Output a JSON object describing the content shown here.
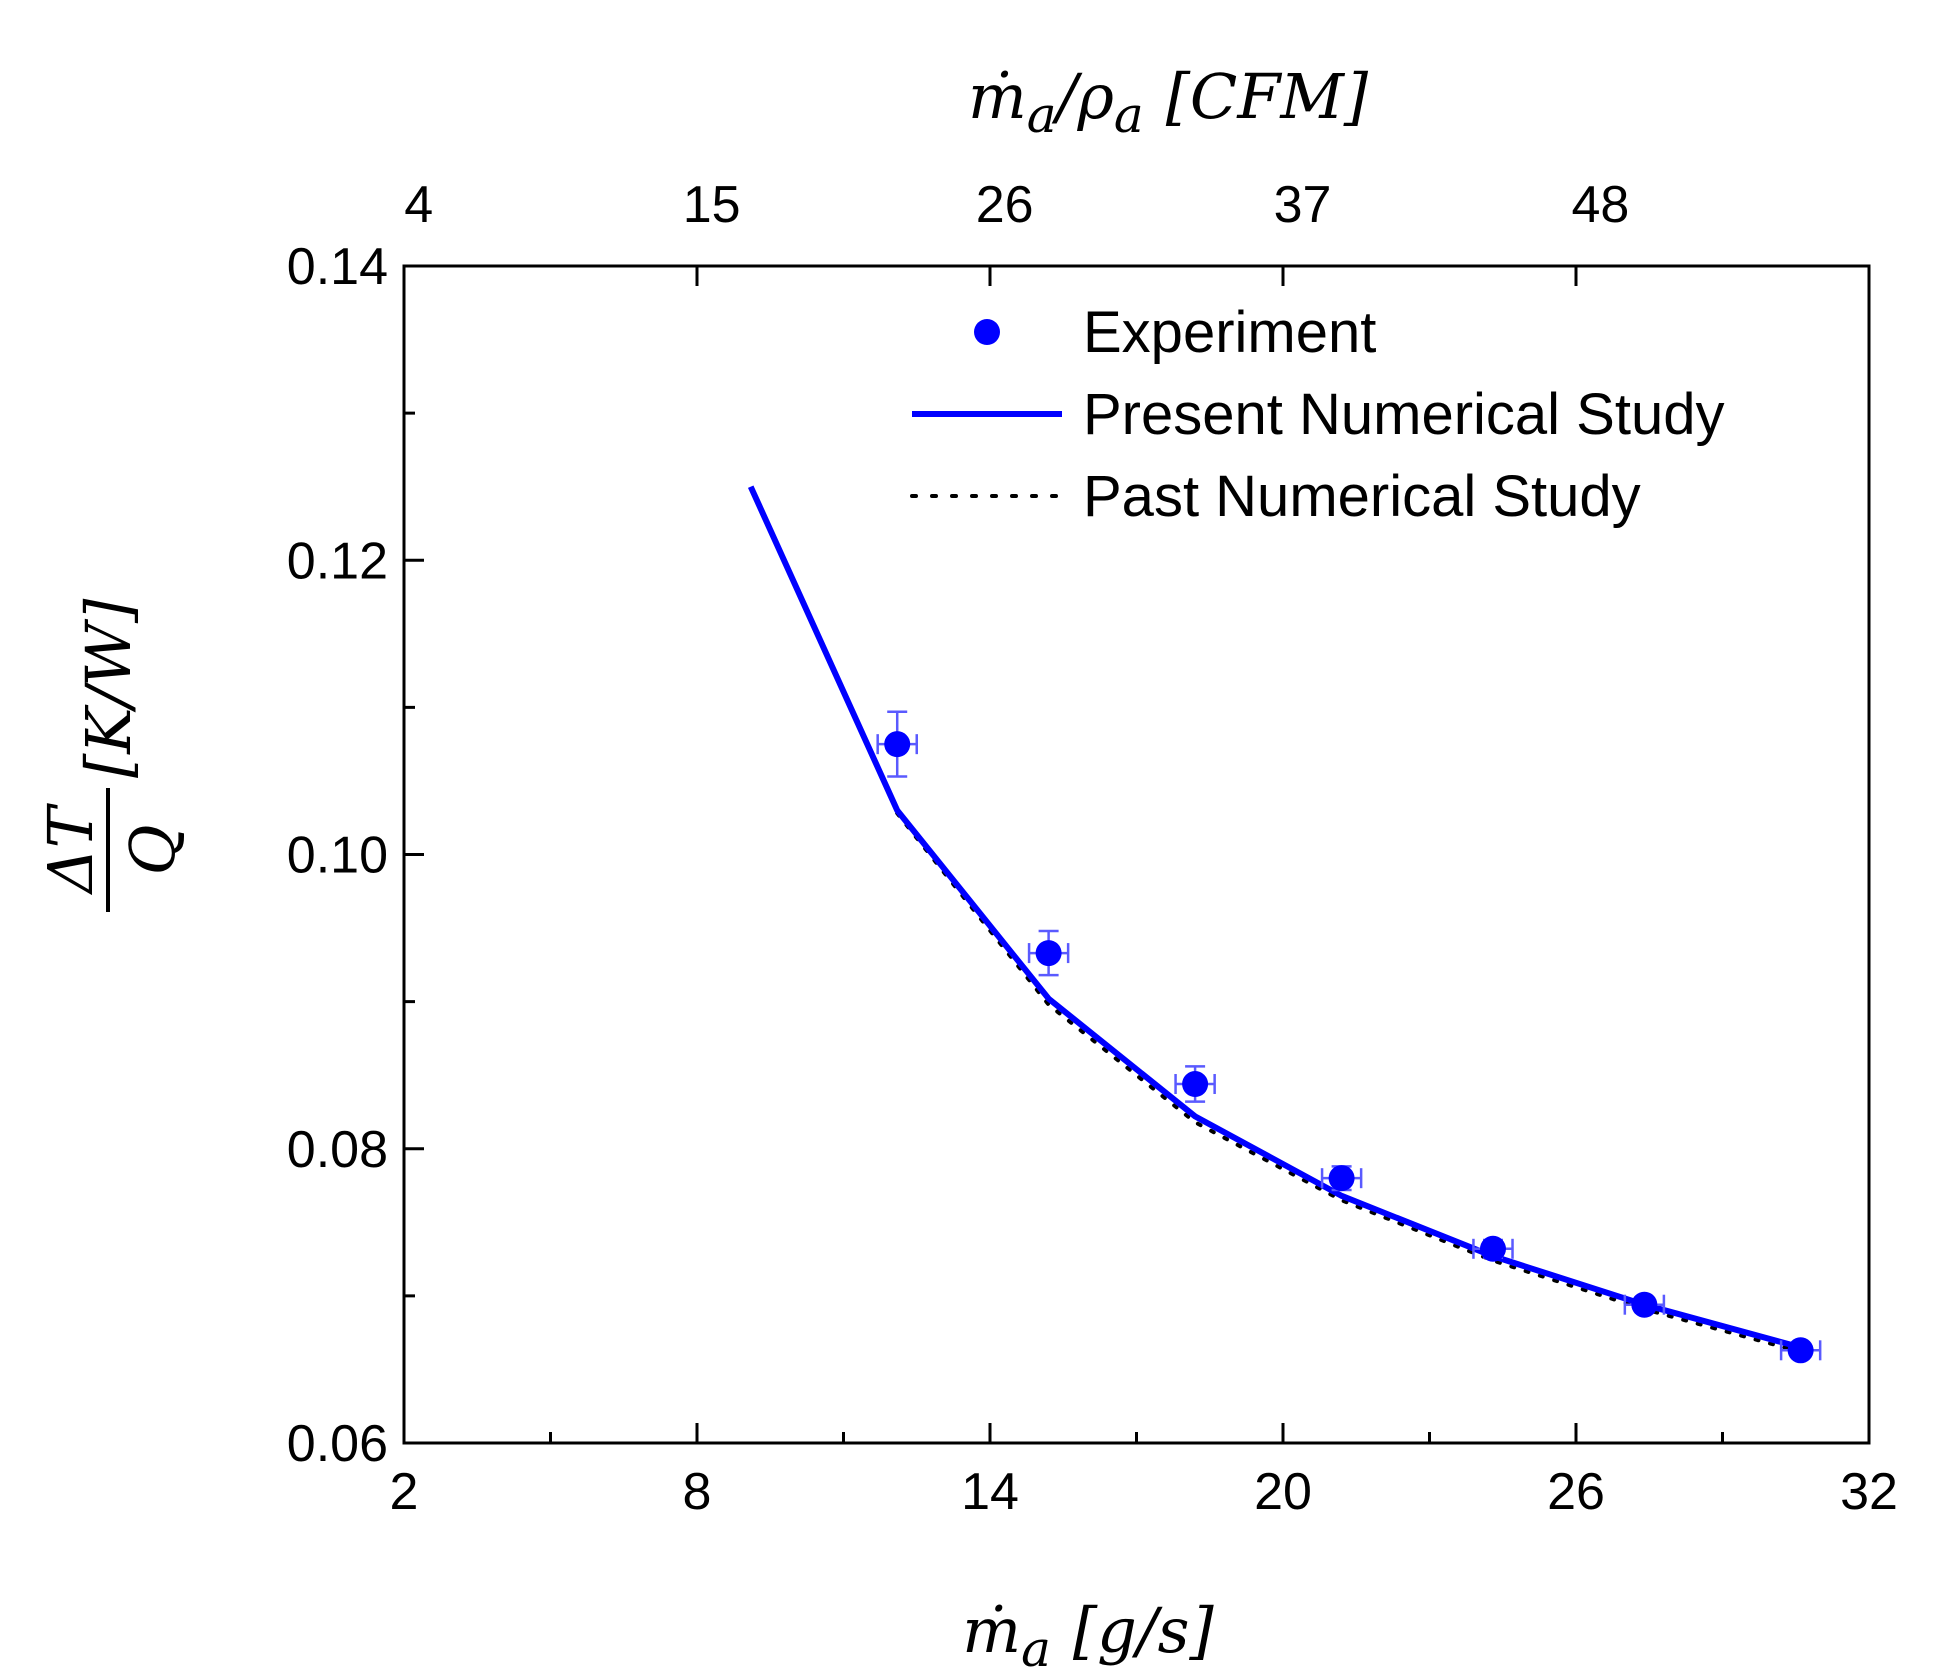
{
  "chart_data": {
    "type": "line",
    "title": "",
    "xlabel": {
      "sym": "ṁ",
      "sub": "a",
      "unit": "[g/s]"
    },
    "x2label": {
      "sym": "ṁ",
      "sub": "a",
      "slash": "/",
      "sym2": "ρ",
      "sub2": "a",
      "unit": "[CFM]"
    },
    "ylabel": {
      "num": "ΔT",
      "den": "Q",
      "unit": "[K/W]"
    },
    "xlim": [
      2,
      32
    ],
    "ylim": [
      0.06,
      0.14
    ],
    "x_ticks": [
      "2",
      "8",
      "14",
      "20",
      "26",
      "32"
    ],
    "x_tick_values": [
      2,
      8,
      14,
      20,
      26,
      32
    ],
    "y_ticks": [
      "0.06",
      "0.08",
      "0.10",
      "0.12",
      "0.14"
    ],
    "y_tick_values": [
      0.06,
      0.08,
      0.1,
      0.12,
      0.14
    ],
    "x2_ticks": [
      "4",
      "15",
      "26",
      "37",
      "48"
    ],
    "x2_tick_values_in_x_units": [
      2.3,
      8.3,
      14.3,
      20.4,
      26.5
    ],
    "grid": false,
    "legend_position": "top-right",
    "series": [
      {
        "name": "Experiment",
        "kind": "scatter",
        "color": "#0000ff",
        "x": [
          12.1,
          15.2,
          18.2,
          21.2,
          24.3,
          27.4,
          30.6
        ],
        "y": [
          0.1075,
          0.0933,
          0.0844,
          0.078,
          0.0732,
          0.0694,
          0.0663
        ],
        "yerr": [
          0.0022,
          0.0015,
          0.0012,
          0.0008,
          0.0006,
          0.0005,
          0.0004
        ],
        "xerr": [
          0.4,
          0.4,
          0.4,
          0.4,
          0.4,
          0.4,
          0.4
        ]
      },
      {
        "name": "Present Numerical Study",
        "kind": "line",
        "color": "#0000ff",
        "x": [
          9.1,
          12.1,
          15.2,
          18.2,
          21.2,
          24.3,
          27.4,
          30.6
        ],
        "y": [
          0.125,
          0.103,
          0.0902,
          0.0822,
          0.0768,
          0.0727,
          0.0694,
          0.0665
        ]
      },
      {
        "name": "Past Numerical Study",
        "kind": "dotted",
        "color": "#000000",
        "x": [
          12.1,
          15.2,
          18.2,
          21.2,
          24.3,
          27.4,
          30.6
        ],
        "y": [
          0.1028,
          0.0898,
          0.0818,
          0.0765,
          0.0724,
          0.0691,
          0.0662
        ]
      }
    ]
  }
}
